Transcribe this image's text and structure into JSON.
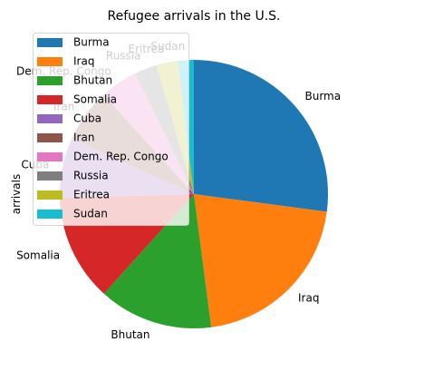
{
  "chart_data": {
    "type": "pie",
    "title": "Refugee arrivals in the U.S.",
    "ylabel": "arrivals",
    "xlabel": "",
    "labels": [
      "Burma",
      "Iraq",
      "Bhutan",
      "Somalia",
      "Cuba",
      "Iran",
      "Dem. Rep. Congo",
      "Russia",
      "Eritrea",
      "Sudan"
    ],
    "values": [
      16693,
      12833,
      8484,
      7914,
      4460,
      3980,
      2795,
      1670,
      1584,
      1187
    ],
    "colors": [
      "#1f77b4",
      "#ff7f0e",
      "#2ca02c",
      "#d62728",
      "#9467bd",
      "#8c564b",
      "#e377c2",
      "#7f7f7f",
      "#bcbd22",
      "#17becf"
    ],
    "start_angle_deg": 90,
    "direction": "clockwise",
    "legend": {
      "placement": "upper-left",
      "frame": true,
      "alpha": 0.8
    }
  }
}
